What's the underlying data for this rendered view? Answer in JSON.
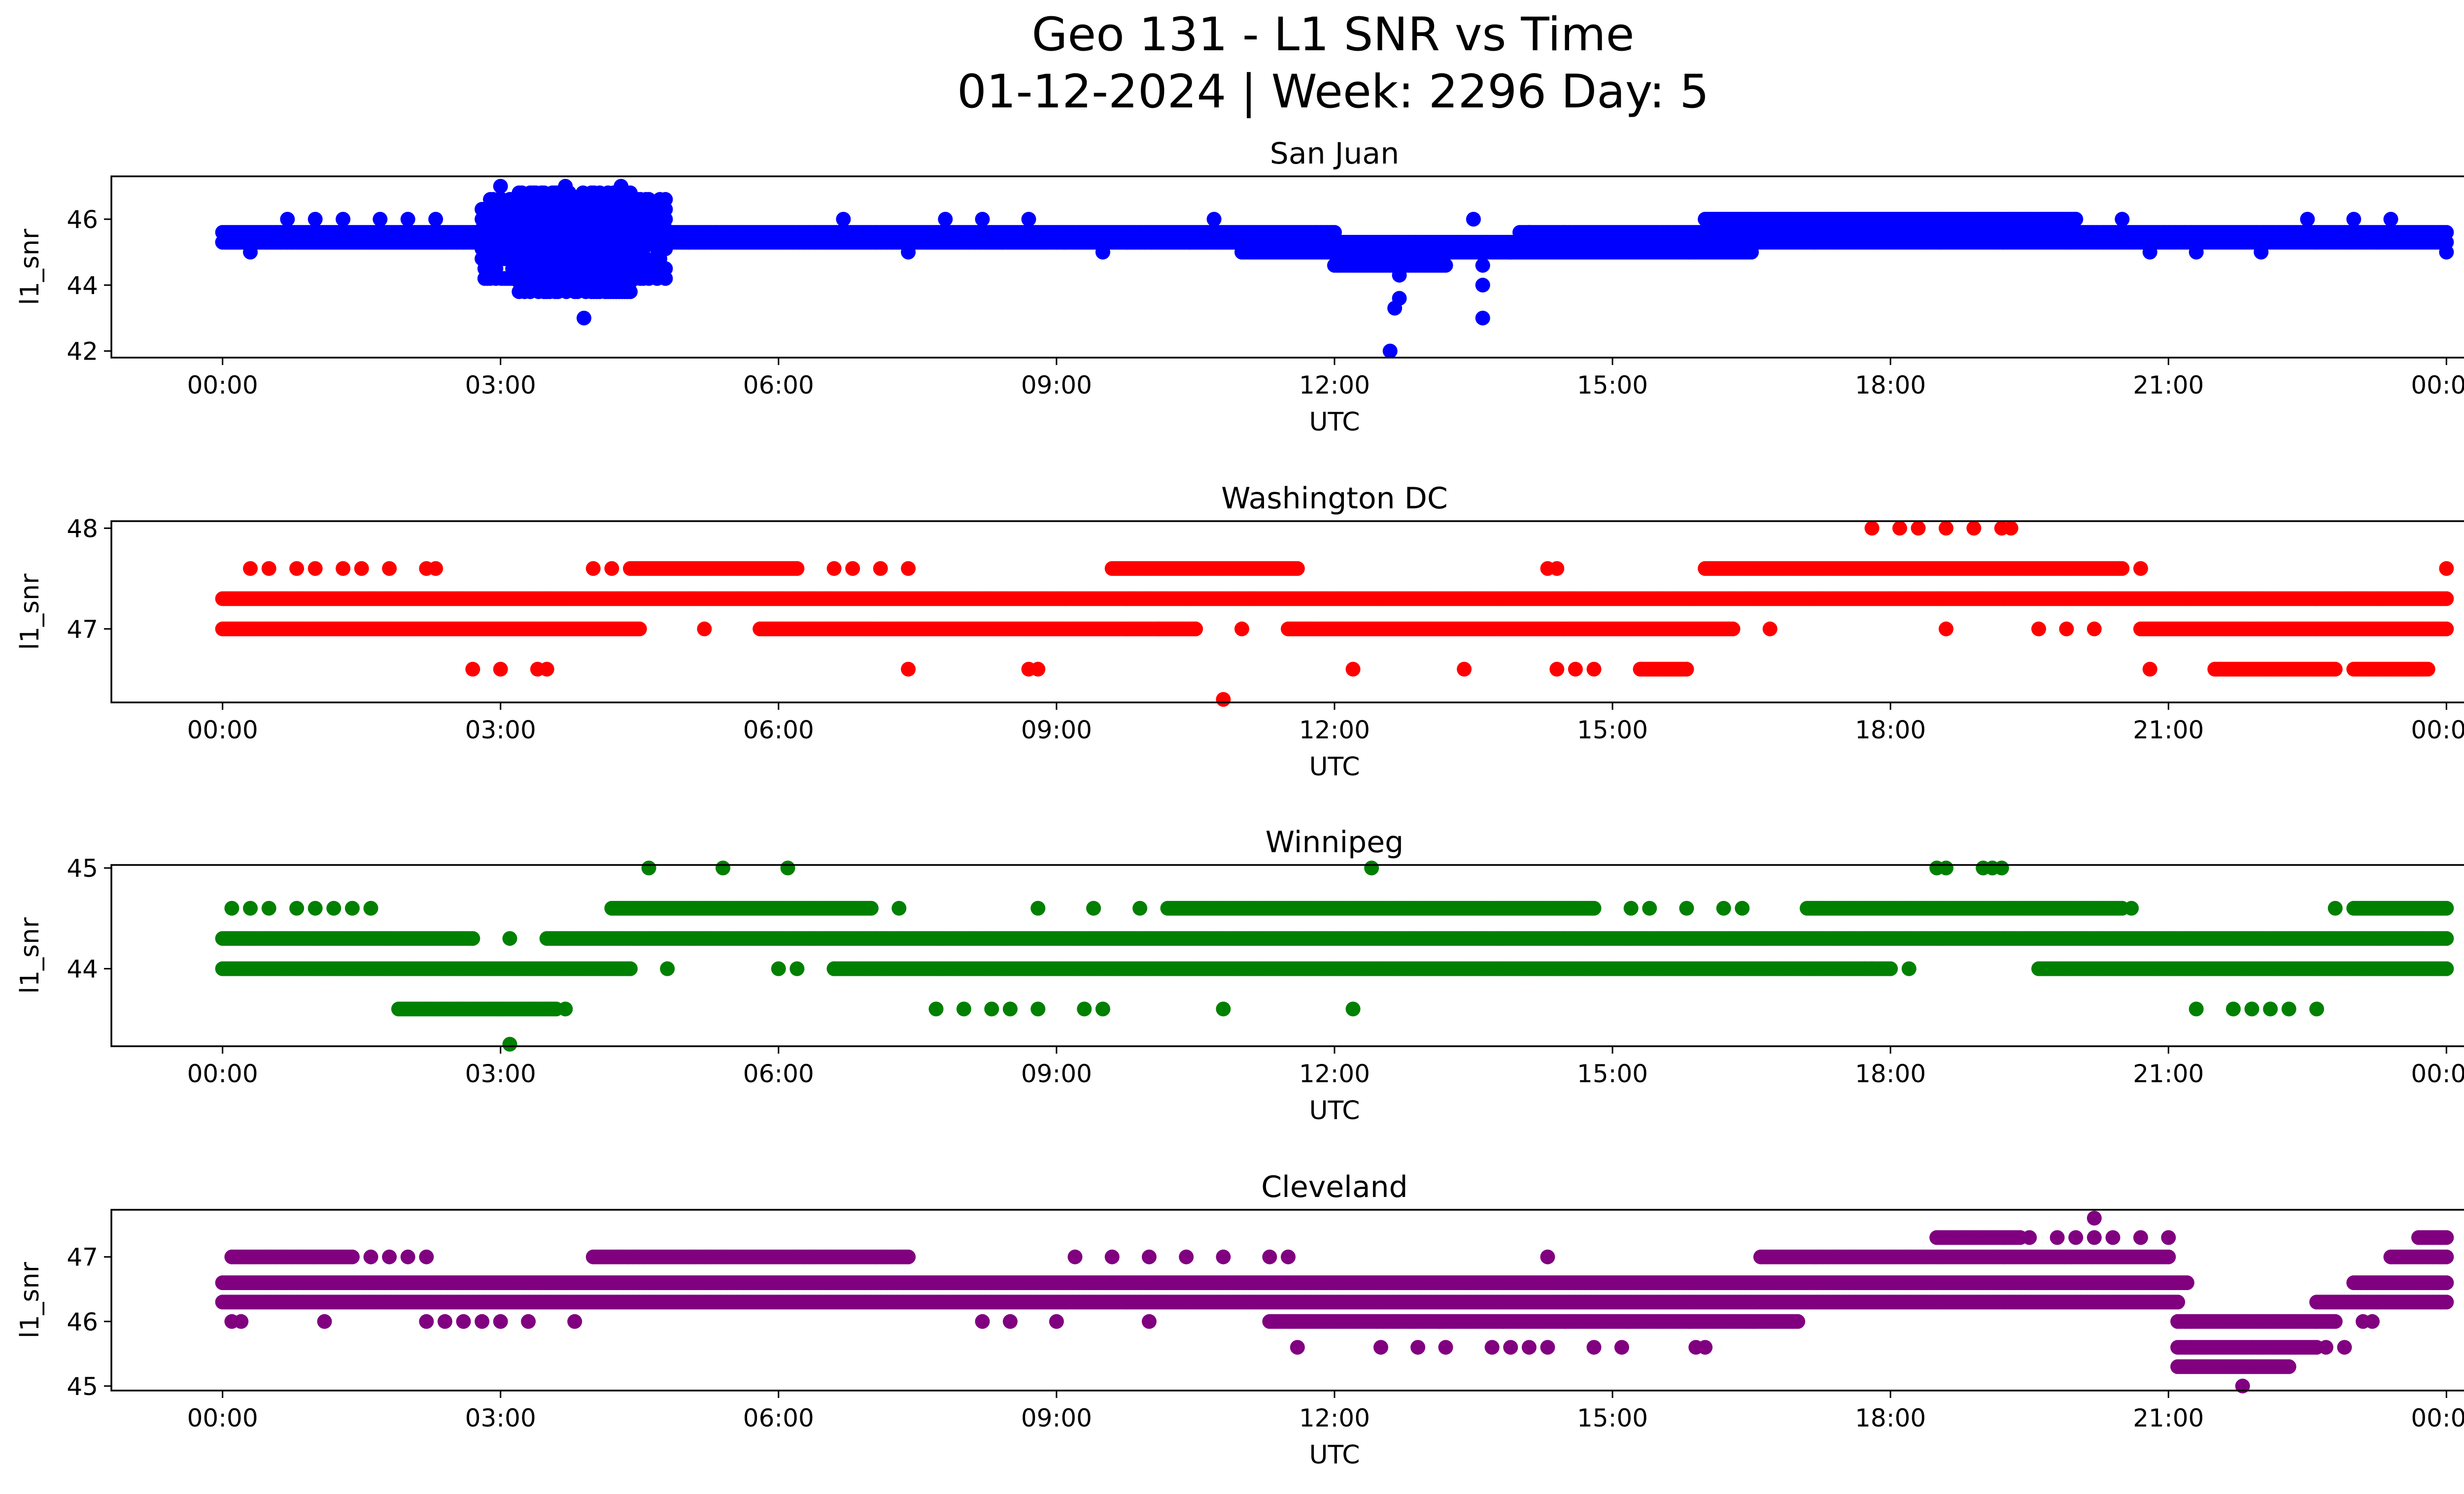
{
  "figure": {
    "title_line1": "Geo 131 - L1 SNR vs Time",
    "title_line2": "01-12-2024 | Week: 2296 Day: 5"
  },
  "chart_data": [
    {
      "type": "scatter",
      "title": "San Juan",
      "xlabel": "UTC",
      "ylabel": "l1_snr",
      "color": "#0000ff",
      "x_unit": "hours UTC",
      "x_ticks": [
        "00:00",
        "03:00",
        "06:00",
        "09:00",
        "12:00",
        "15:00",
        "18:00",
        "21:00",
        "00:00"
      ],
      "xlim": [
        -1.2,
        25.2
      ],
      "ylim": [
        41.8,
        47.3
      ],
      "y_ticks": [
        42,
        44,
        46
      ],
      "bands": [
        {
          "y": 45.3,
          "from": 0.0,
          "to": 24.0
        },
        {
          "y": 45.6,
          "from": 0.0,
          "to": 12.0
        },
        {
          "y": 45.6,
          "from": 14.0,
          "to": 24.0
        },
        {
          "y": 45.3,
          "from": 0.0,
          "to": 11.0
        },
        {
          "y": 45.0,
          "from": 11.0,
          "to": 16.5
        },
        {
          "y": 44.6,
          "from": 12.0,
          "to": 13.2
        },
        {
          "y": 46.0,
          "from": 16.0,
          "to": 20.0
        }
      ],
      "sparse": [
        [
          0.3,
          45.0
        ],
        [
          0.7,
          46.0
        ],
        [
          1.0,
          46.0
        ],
        [
          1.3,
          46.0
        ],
        [
          1.7,
          46.0
        ],
        [
          2.0,
          46.0
        ],
        [
          2.3,
          46.0
        ],
        [
          6.7,
          46.0
        ],
        [
          7.4,
          45.0
        ],
        [
          7.8,
          46.0
        ],
        [
          8.2,
          46.0
        ],
        [
          8.7,
          46.0
        ],
        [
          9.5,
          45.0
        ],
        [
          10.7,
          46.0
        ],
        [
          11.0,
          45.3
        ],
        [
          12.6,
          42.0
        ],
        [
          12.65,
          43.3
        ],
        [
          12.7,
          43.6
        ],
        [
          12.7,
          44.3
        ],
        [
          13.5,
          46.0
        ],
        [
          13.6,
          44.6
        ],
        [
          13.6,
          44.0
        ],
        [
          13.6,
          43.0
        ],
        [
          13.9,
          45.0
        ],
        [
          14.1,
          45.6
        ],
        [
          16.2,
          46.0
        ],
        [
          16.7,
          46.0
        ],
        [
          17.3,
          46.0
        ],
        [
          18.5,
          46.0
        ],
        [
          19.5,
          46.0
        ],
        [
          20.0,
          46.0
        ],
        [
          20.5,
          46.0
        ],
        [
          20.8,
          45.0
        ],
        [
          21.3,
          45.0
        ],
        [
          22.0,
          45.0
        ],
        [
          22.5,
          46.0
        ],
        [
          23.0,
          46.0
        ],
        [
          23.4,
          46.0
        ],
        [
          24.0,
          45.0
        ]
      ],
      "clusters": [
        {
          "from": 2.8,
          "to": 4.8,
          "ymin": 44.2,
          "ymax": 46.8
        },
        {
          "from": 3.2,
          "to": 4.4,
          "ymin": 43.8,
          "ymax": 47.0
        }
      ],
      "extra": [
        [
          3.9,
          43.0
        ],
        [
          3.0,
          47.0
        ],
        [
          3.7,
          47.0
        ],
        [
          4.3,
          47.0
        ]
      ]
    },
    {
      "type": "scatter",
      "title": "Washington DC",
      "xlabel": "UTC",
      "ylabel": "l1_snr",
      "color": "#ff0000",
      "x_unit": "hours UTC",
      "x_ticks": [
        "00:00",
        "03:00",
        "06:00",
        "09:00",
        "12:00",
        "15:00",
        "18:00",
        "21:00",
        "00:00"
      ],
      "xlim": [
        -1.2,
        25.2
      ],
      "ylim": [
        46.27,
        48.07
      ],
      "y_ticks": [
        47,
        48
      ],
      "bands": [
        {
          "y": 47.3,
          "from": 0.0,
          "to": 24.0
        },
        {
          "y": 47.0,
          "from": 0.0,
          "to": 4.5
        },
        {
          "y": 47.0,
          "from": 5.8,
          "to": 10.5
        },
        {
          "y": 47.0,
          "from": 11.5,
          "to": 16.3
        },
        {
          "y": 47.0,
          "from": 20.7,
          "to": 24.0
        },
        {
          "y": 47.6,
          "from": 4.4,
          "to": 6.2
        },
        {
          "y": 47.6,
          "from": 9.6,
          "to": 11.6
        },
        {
          "y": 47.6,
          "from": 16.0,
          "to": 20.5
        },
        {
          "y": 46.6,
          "from": 15.3,
          "to": 15.8
        },
        {
          "y": 46.6,
          "from": 21.5,
          "to": 22.8
        },
        {
          "y": 46.6,
          "from": 23.0,
          "to": 23.8
        }
      ],
      "sparse": [
        [
          0.3,
          47.6
        ],
        [
          0.5,
          47.6
        ],
        [
          0.8,
          47.6
        ],
        [
          1.0,
          47.6
        ],
        [
          1.3,
          47.6
        ],
        [
          1.5,
          47.6
        ],
        [
          1.8,
          47.6
        ],
        [
          2.2,
          47.6
        ],
        [
          2.3,
          47.6
        ],
        [
          4.0,
          47.6
        ],
        [
          4.2,
          47.6
        ],
        [
          6.6,
          47.6
        ],
        [
          6.8,
          47.6
        ],
        [
          7.1,
          47.6
        ],
        [
          7.4,
          47.6
        ],
        [
          2.7,
          46.6
        ],
        [
          3.0,
          46.6
        ],
        [
          3.4,
          46.6
        ],
        [
          3.5,
          46.6
        ],
        [
          7.4,
          46.6
        ],
        [
          8.7,
          46.6
        ],
        [
          8.8,
          46.6
        ],
        [
          12.2,
          46.6
        ],
        [
          13.4,
          46.6
        ],
        [
          14.4,
          46.6
        ],
        [
          14.6,
          46.6
        ],
        [
          14.8,
          46.6
        ],
        [
          20.8,
          46.6
        ],
        [
          5.2,
          47.0
        ],
        [
          10.1,
          47.0
        ],
        [
          10.5,
          47.0
        ],
        [
          11.0,
          47.0
        ],
        [
          16.7,
          47.0
        ],
        [
          18.6,
          47.0
        ],
        [
          19.6,
          47.0
        ],
        [
          19.9,
          47.0
        ],
        [
          20.2,
          47.0
        ],
        [
          10.8,
          46.3
        ],
        [
          14.3,
          47.6
        ],
        [
          14.4,
          47.6
        ],
        [
          20.7,
          47.6
        ],
        [
          24.0,
          47.6
        ],
        [
          17.8,
          48.0
        ],
        [
          18.1,
          48.0
        ],
        [
          18.3,
          48.0
        ],
        [
          18.6,
          48.0
        ],
        [
          18.9,
          48.0
        ],
        [
          19.2,
          48.0
        ],
        [
          19.3,
          48.0
        ]
      ],
      "clusters": [],
      "extra": []
    },
    {
      "type": "scatter",
      "title": "Winnipeg",
      "xlabel": "UTC",
      "ylabel": "l1_snr",
      "color": "#008000",
      "x_unit": "hours UTC",
      "x_ticks": [
        "00:00",
        "03:00",
        "06:00",
        "09:00",
        "12:00",
        "15:00",
        "18:00",
        "21:00",
        "00:00"
      ],
      "xlim": [
        -1.2,
        25.2
      ],
      "ylim": [
        43.23,
        45.03
      ],
      "y_ticks": [
        44,
        45
      ],
      "bands": [
        {
          "y": 44.3,
          "from": 0.0,
          "to": 2.7
        },
        {
          "y": 44.3,
          "from": 3.5,
          "to": 24.0
        },
        {
          "y": 44.0,
          "from": 0.0,
          "to": 4.4
        },
        {
          "y": 44.0,
          "from": 6.6,
          "to": 18.0
        },
        {
          "y": 44.0,
          "from": 19.6,
          "to": 24.0
        },
        {
          "y": 43.6,
          "from": 1.9,
          "to": 3.6
        },
        {
          "y": 44.6,
          "from": 4.2,
          "to": 7.0
        },
        {
          "y": 44.6,
          "from": 10.2,
          "to": 14.8
        },
        {
          "y": 44.6,
          "from": 17.1,
          "to": 20.5
        },
        {
          "y": 44.6,
          "from": 23.0,
          "to": 24.0
        }
      ],
      "sparse": [
        [
          0.1,
          44.6
        ],
        [
          0.3,
          44.6
        ],
        [
          0.5,
          44.6
        ],
        [
          0.8,
          44.6
        ],
        [
          1.0,
          44.6
        ],
        [
          1.2,
          44.6
        ],
        [
          1.4,
          44.6
        ],
        [
          1.6,
          44.6
        ],
        [
          3.1,
          44.3
        ],
        [
          3.7,
          43.6
        ],
        [
          3.1,
          43.25
        ],
        [
          4.8,
          44.0
        ],
        [
          7.3,
          44.6
        ],
        [
          8.8,
          44.6
        ],
        [
          9.4,
          44.6
        ],
        [
          9.9,
          44.6
        ],
        [
          15.2,
          44.6
        ],
        [
          15.4,
          44.6
        ],
        [
          15.8,
          44.6
        ],
        [
          16.2,
          44.6
        ],
        [
          16.4,
          44.6
        ],
        [
          6.0,
          44.0
        ],
        [
          6.2,
          44.0
        ],
        [
          6.6,
          44.0
        ],
        [
          17.8,
          44.0
        ],
        [
          18.2,
          44.0
        ],
        [
          7.7,
          43.6
        ],
        [
          8.0,
          43.6
        ],
        [
          8.3,
          43.6
        ],
        [
          8.5,
          43.6
        ],
        [
          8.8,
          43.6
        ],
        [
          9.3,
          43.6
        ],
        [
          9.5,
          43.6
        ],
        [
          10.8,
          43.6
        ],
        [
          12.2,
          43.6
        ],
        [
          21.3,
          43.6
        ],
        [
          21.7,
          43.6
        ],
        [
          21.9,
          43.6
        ],
        [
          22.1,
          43.6
        ],
        [
          22.3,
          43.6
        ],
        [
          22.6,
          43.6
        ],
        [
          4.6,
          45.0
        ],
        [
          5.4,
          45.0
        ],
        [
          6.1,
          45.0
        ],
        [
          12.4,
          45.0
        ],
        [
          18.5,
          45.0
        ],
        [
          18.6,
          45.0
        ],
        [
          19.0,
          45.0
        ],
        [
          19.1,
          45.0
        ],
        [
          19.2,
          45.0
        ],
        [
          20.6,
          44.6
        ],
        [
          22.8,
          44.6
        ]
      ],
      "clusters": [],
      "extra": []
    },
    {
      "type": "scatter",
      "title": "Cleveland",
      "xlabel": "UTC",
      "ylabel": "l1_snr",
      "color": "#800080",
      "x_unit": "hours UTC",
      "x_ticks": [
        "00:00",
        "03:00",
        "06:00",
        "09:00",
        "12:00",
        "15:00",
        "18:00",
        "21:00",
        "00:00"
      ],
      "xlim": [
        -1.2,
        25.2
      ],
      "ylim": [
        44.93,
        47.73
      ],
      "y_ticks": [
        45,
        46,
        47
      ],
      "bands": [
        {
          "y": 46.6,
          "from": 0.0,
          "to": 21.2
        },
        {
          "y": 46.6,
          "from": 23.0,
          "to": 24.0
        },
        {
          "y": 46.3,
          "from": 0.0,
          "to": 21.1
        },
        {
          "y": 46.3,
          "from": 22.6,
          "to": 24.0
        },
        {
          "y": 47.0,
          "from": 0.1,
          "to": 1.4
        },
        {
          "y": 47.0,
          "from": 4.0,
          "to": 7.4
        },
        {
          "y": 47.0,
          "from": 16.6,
          "to": 21.0
        },
        {
          "y": 47.0,
          "from": 23.4,
          "to": 24.0
        },
        {
          "y": 46.0,
          "from": 11.3,
          "to": 17.0
        },
        {
          "y": 46.0,
          "from": 21.1,
          "to": 22.8
        },
        {
          "y": 45.6,
          "from": 21.1,
          "to": 22.6
        },
        {
          "y": 45.3,
          "from": 21.1,
          "to": 22.3
        },
        {
          "y": 47.3,
          "from": 18.5,
          "to": 19.4
        },
        {
          "y": 47.3,
          "from": 23.7,
          "to": 24.0
        }
      ],
      "sparse": [
        [
          0.1,
          46.0
        ],
        [
          0.2,
          46.0
        ],
        [
          1.1,
          46.0
        ],
        [
          2.2,
          46.0
        ],
        [
          2.4,
          46.0
        ],
        [
          2.6,
          46.0
        ],
        [
          2.8,
          46.0
        ],
        [
          3.0,
          46.0
        ],
        [
          3.3,
          46.0
        ],
        [
          3.8,
          46.0
        ],
        [
          8.2,
          46.0
        ],
        [
          8.5,
          46.0
        ],
        [
          9.0,
          46.0
        ],
        [
          10.0,
          46.0
        ],
        [
          1.6,
          47.0
        ],
        [
          1.8,
          47.0
        ],
        [
          2.0,
          47.0
        ],
        [
          2.2,
          47.0
        ],
        [
          9.2,
          47.0
        ],
        [
          9.6,
          47.0
        ],
        [
          10.0,
          47.0
        ],
        [
          10.4,
          47.0
        ],
        [
          10.8,
          47.0
        ],
        [
          11.3,
          47.0
        ],
        [
          11.5,
          47.0
        ],
        [
          14.3,
          47.0
        ],
        [
          11.6,
          45.6
        ],
        [
          12.5,
          45.6
        ],
        [
          12.9,
          45.6
        ],
        [
          13.2,
          45.6
        ],
        [
          13.7,
          45.6
        ],
        [
          13.9,
          45.6
        ],
        [
          14.1,
          45.6
        ],
        [
          14.3,
          45.6
        ],
        [
          14.8,
          45.6
        ],
        [
          15.1,
          45.6
        ],
        [
          15.9,
          45.6
        ],
        [
          16.0,
          45.6
        ],
        [
          19.5,
          47.3
        ],
        [
          19.8,
          47.3
        ],
        [
          20.0,
          47.3
        ],
        [
          20.2,
          47.3
        ],
        [
          20.4,
          47.3
        ],
        [
          20.7,
          47.3
        ],
        [
          21.0,
          47.3
        ],
        [
          20.2,
          47.6
        ],
        [
          21.8,
          45.0
        ],
        [
          22.7,
          45.6
        ],
        [
          22.9,
          45.6
        ],
        [
          23.1,
          46.0
        ],
        [
          23.2,
          46.0
        ]
      ],
      "clusters": [],
      "extra": []
    }
  ]
}
